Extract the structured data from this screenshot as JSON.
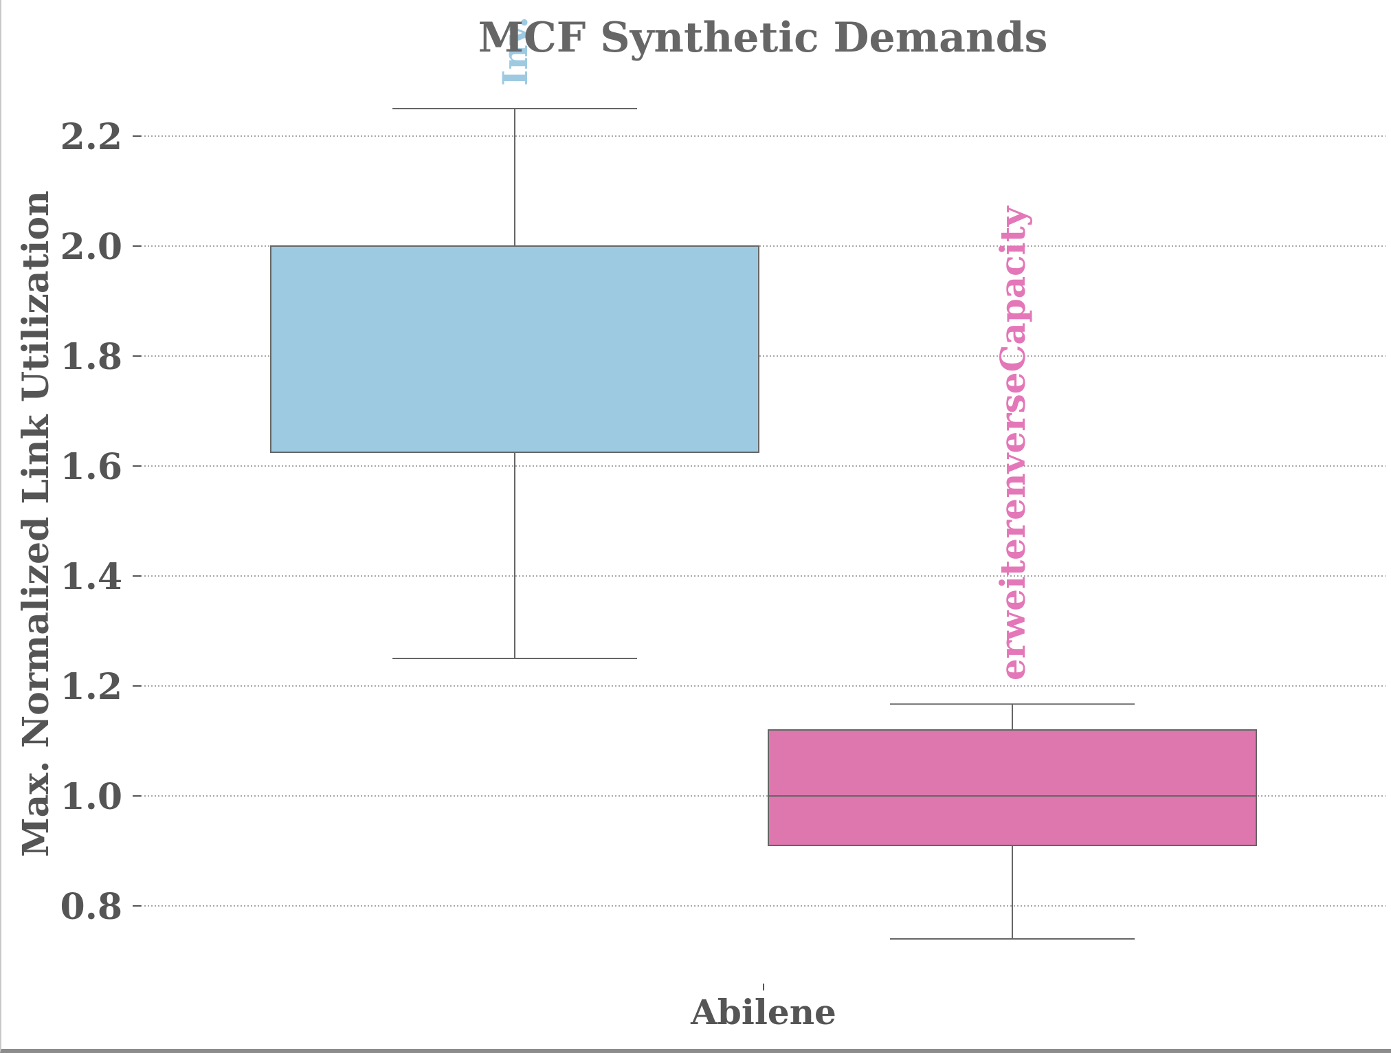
{
  "chart_data": {
    "type": "box",
    "title": "MCF Synthetic Demands",
    "ylabel": "Max. Normalized Link Utilization",
    "xlabel": "",
    "categories": [
      "Abilene"
    ],
    "ylim": [
      0.68,
      2.3
    ],
    "yticks": [
      0.8,
      1.0,
      1.2,
      1.4,
      1.6,
      1.8,
      2.0,
      2.2
    ],
    "grid": "horizontal-dotted",
    "series": [
      {
        "name": "Inv.",
        "color": "#9ecae1",
        "label_color": "#9ecae1",
        "whislo": 1.25,
        "q1": 1.625,
        "med": 2.0,
        "q3": 2.0,
        "whishi": 2.25
      },
      {
        "name": "erweiterenverseCapacity",
        "color": "#de77ae",
        "label_color": "#e377b8",
        "whislo": 0.74,
        "q1": 0.91,
        "med": 1.0,
        "q3": 1.12,
        "whishi": 1.167
      }
    ]
  },
  "colors": {
    "text": "#555555",
    "title": "#666666",
    "grid": "#888888",
    "box_edge": "#666666"
  }
}
